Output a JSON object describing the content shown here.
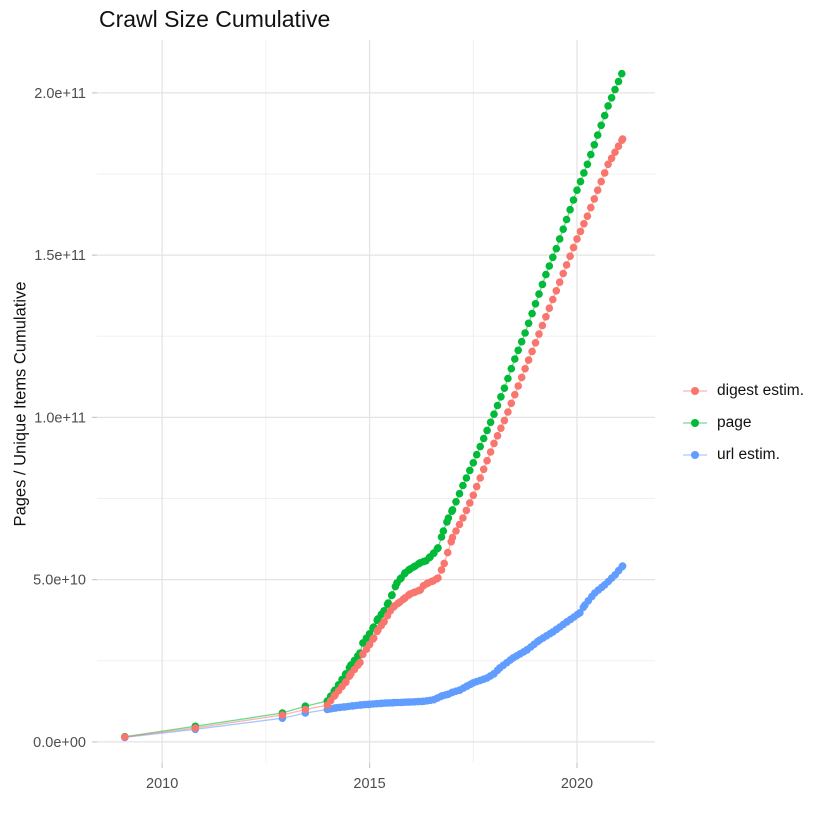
{
  "chart": {
    "title": "Crawl Size Cumulative",
    "ylabel": "Pages / Unique Items Cumulative",
    "xlabel": ""
  },
  "chart_data": {
    "type": "scatter",
    "title": "Crawl Size Cumulative",
    "xlabel": "",
    "ylabel": "Pages / Unique Items Cumulative",
    "value_unit_note": "values are cumulative counts in billions (1e9); y axis shown in scientific notation",
    "axes": {
      "xlim": [
        2008.43,
        2021.88
      ],
      "ylim_billions": [
        -6.5,
        216.3
      ],
      "x_ticks": [
        {
          "v": 2010,
          "label": "2010"
        },
        {
          "v": 2015,
          "label": "2015"
        },
        {
          "v": 2020,
          "label": "2020"
        }
      ],
      "y_ticks": [
        {
          "v": 0,
          "label": "0.0e+00"
        },
        {
          "v": 50,
          "label": "5.0e+10"
        },
        {
          "v": 100,
          "label": "1.0e+11"
        },
        {
          "v": 150,
          "label": "1.5e+11"
        },
        {
          "v": 200,
          "label": "2.0e+11"
        }
      ],
      "x_minor": [
        2012.5,
        2017.5
      ],
      "y_minor": [
        25,
        75,
        125,
        175
      ],
      "grid": true,
      "legend_position": "right"
    },
    "series": [
      {
        "name": "digest estim.",
        "color": "#F8766D",
        "sparse_points": [
          [
            2009.1,
            1.5
          ],
          [
            2010.8,
            4.3
          ],
          [
            2012.9,
            8.3
          ],
          [
            2013.45,
            10.0
          ]
        ],
        "dense_points": [
          [
            2013.98,
            11.3
          ],
          [
            2014.17,
            14.5
          ],
          [
            2014.43,
            18.5
          ],
          [
            2014.55,
            21
          ],
          [
            2014.77,
            24.5
          ],
          [
            2014.84,
            27
          ],
          [
            2015.0,
            30
          ],
          [
            2015.1,
            32
          ],
          [
            2015.2,
            34.5
          ],
          [
            2015.35,
            37
          ],
          [
            2015.5,
            40.4
          ],
          [
            2015.6,
            41.9
          ],
          [
            2015.73,
            43.1
          ],
          [
            2015.86,
            44.4
          ],
          [
            2015.98,
            45.6
          ],
          [
            2016.1,
            46.2
          ],
          [
            2016.22,
            46.8
          ],
          [
            2016.3,
            48.1
          ],
          [
            2016.41,
            49
          ],
          [
            2016.53,
            49.6
          ],
          [
            2016.65,
            50.5
          ],
          [
            2016.8,
            55
          ],
          [
            2017.0,
            63
          ],
          [
            2017.25,
            69
          ],
          [
            2017.5,
            76
          ],
          [
            2017.75,
            84
          ],
          [
            2018.0,
            92
          ],
          [
            2018.25,
            99
          ],
          [
            2018.5,
            107
          ],
          [
            2018.75,
            115
          ],
          [
            2019.0,
            123
          ],
          [
            2019.25,
            131
          ],
          [
            2019.5,
            139
          ],
          [
            2019.75,
            147
          ],
          [
            2020.0,
            155
          ],
          [
            2020.25,
            162
          ],
          [
            2020.5,
            170
          ],
          [
            2020.75,
            178
          ],
          [
            2021.1,
            185.8
          ]
        ]
      },
      {
        "name": "page",
        "color": "#00BA38",
        "sparse_points": [
          [
            2009.1,
            1.6
          ],
          [
            2010.8,
            4.8
          ],
          [
            2012.9,
            8.9
          ],
          [
            2013.45,
            11.0
          ]
        ],
        "dense_points": [
          [
            2013.98,
            12.6
          ],
          [
            2014.17,
            16
          ],
          [
            2014.43,
            21
          ],
          [
            2014.55,
            23.7
          ],
          [
            2014.77,
            27.4
          ],
          [
            2014.84,
            30.5
          ],
          [
            2015.0,
            33.3
          ],
          [
            2015.1,
            35.4
          ],
          [
            2015.2,
            37.9
          ],
          [
            2015.35,
            40.4
          ],
          [
            2015.45,
            42.8
          ],
          [
            2015.54,
            45.3
          ],
          [
            2015.66,
            49
          ],
          [
            2015.76,
            50.5
          ],
          [
            2015.86,
            52.1
          ],
          [
            2015.98,
            53.3
          ],
          [
            2016.1,
            54.2
          ],
          [
            2016.22,
            55.2
          ],
          [
            2016.36,
            55.8
          ],
          [
            2016.46,
            57
          ],
          [
            2016.55,
            58.2
          ],
          [
            2016.65,
            59.8
          ],
          [
            2016.78,
            65
          ],
          [
            2016.9,
            69
          ],
          [
            2017.0,
            71.5
          ],
          [
            2017.25,
            79
          ],
          [
            2017.5,
            86
          ],
          [
            2017.75,
            93.5
          ],
          [
            2018.0,
            101
          ],
          [
            2018.25,
            109
          ],
          [
            2018.5,
            118
          ],
          [
            2018.75,
            126
          ],
          [
            2019.0,
            135
          ],
          [
            2019.25,
            144
          ],
          [
            2019.5,
            152
          ],
          [
            2019.75,
            161
          ],
          [
            2020.0,
            170
          ],
          [
            2020.25,
            178
          ],
          [
            2020.5,
            187
          ],
          [
            2020.75,
            196
          ],
          [
            2021.08,
            205.9
          ]
        ]
      },
      {
        "name": "url estim.",
        "color": "#619CFF",
        "sparse_points": [
          [
            2009.1,
            1.4
          ],
          [
            2010.8,
            3.9
          ],
          [
            2012.9,
            7.3
          ],
          [
            2013.45,
            8.9
          ]
        ],
        "dense_points": [
          [
            2013.98,
            10
          ],
          [
            2014.2,
            10.5
          ],
          [
            2014.4,
            10.8
          ],
          [
            2014.6,
            11.1
          ],
          [
            2014.8,
            11.4
          ],
          [
            2015.0,
            11.6
          ],
          [
            2015.3,
            11.9
          ],
          [
            2015.6,
            12.1
          ],
          [
            2016.0,
            12.3
          ],
          [
            2016.3,
            12.5
          ],
          [
            2016.55,
            13
          ],
          [
            2016.75,
            14.2
          ],
          [
            2016.9,
            14.7
          ],
          [
            2017.0,
            15.3
          ],
          [
            2017.18,
            16
          ],
          [
            2017.35,
            17.2
          ],
          [
            2017.5,
            18.2
          ],
          [
            2017.83,
            19.7
          ],
          [
            2018.0,
            21
          ],
          [
            2018.14,
            22.8
          ],
          [
            2018.46,
            25.9
          ],
          [
            2018.8,
            28.4
          ],
          [
            2019.1,
            31.4
          ],
          [
            2019.42,
            33.9
          ],
          [
            2019.76,
            37
          ],
          [
            2020.07,
            39.8
          ],
          [
            2020.19,
            42.2
          ],
          [
            2020.43,
            45.9
          ],
          [
            2020.67,
            48.4
          ],
          [
            2020.92,
            51.5
          ],
          [
            2021.1,
            54.2
          ]
        ]
      }
    ],
    "style": {
      "grid_major_color": "#E3E3E3",
      "grid_minor_color": "#F0F0F0",
      "tick_mark_color": "#C9C9C9",
      "tick_label_color": "#4D4D4D",
      "background": "#FFFFFF"
    }
  }
}
